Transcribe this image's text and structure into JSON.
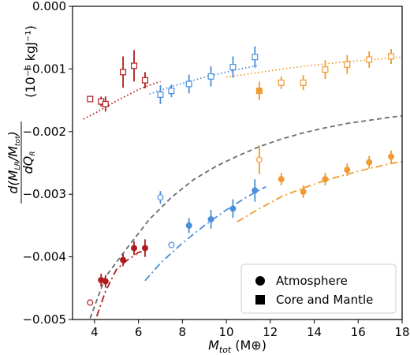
{
  "chart_data": {
    "type": "scatter",
    "title": "",
    "xlabel": {
      "main": "M",
      "sub": "tot",
      "unit": "(M⊕)"
    },
    "ylabel": {
      "num_prefix": "d(M",
      "num_sub1": "LR",
      "num_mid": "/M",
      "num_sub2": "tot",
      "num_suffix": ")",
      "den_prefix": "dQ",
      "den_sub": "R",
      "unit": "(10⁻⁶ kgJ⁻¹)"
    },
    "xlim": [
      3,
      18
    ],
    "ylim": [
      -0.005,
      0.0
    ],
    "xticks": [
      "4",
      "6",
      "8",
      "10",
      "12",
      "14",
      "16",
      "18"
    ],
    "xtick_values": [
      4,
      6,
      8,
      10,
      12,
      14,
      16,
      18
    ],
    "yticks": [
      "0.000",
      "−0.001",
      "−0.002",
      "−0.003",
      "−0.004",
      "−0.005"
    ],
    "ytick_values": [
      0.0,
      -0.001,
      -0.002,
      -0.003,
      -0.004,
      -0.005
    ],
    "grid": false,
    "legend": {
      "placement": "bottom-right",
      "entries": [
        {
          "label": "Atmosphere",
          "marker": "circle"
        },
        {
          "label": "Core and Mantle",
          "marker": "square"
        }
      ]
    },
    "colors": {
      "red": "#b01c1c",
      "blue": "#4a8fd9",
      "orange": "#f09a30",
      "gray": "#666f73"
    },
    "series": [
      {
        "color": "red",
        "marker": "square",
        "points": [
          {
            "x": 3.8,
            "y": -0.00148,
            "err": 4e-05,
            "filled": false
          },
          {
            "x": 4.3,
            "y": -0.00152,
            "err": 8e-05,
            "filled": false
          },
          {
            "x": 4.5,
            "y": -0.00156,
            "err": 0.00012,
            "filled": false
          },
          {
            "x": 5.3,
            "y": -0.00105,
            "err": 0.00025,
            "filled": false
          },
          {
            "x": 5.8,
            "y": -0.00095,
            "err": 0.00025,
            "filled": false
          },
          {
            "x": 6.3,
            "y": -0.00118,
            "err": 0.00013,
            "filled": false
          }
        ]
      },
      {
        "color": "blue",
        "marker": "square",
        "points": [
          {
            "x": 7.0,
            "y": -0.00141,
            "err": 0.00015,
            "filled": false
          },
          {
            "x": 7.5,
            "y": -0.00135,
            "err": 0.0001,
            "filled": false
          },
          {
            "x": 8.3,
            "y": -0.00124,
            "err": 0.00015,
            "filled": false
          },
          {
            "x": 9.3,
            "y": -0.00112,
            "err": 0.00016,
            "filled": false
          },
          {
            "x": 10.3,
            "y": -0.00097,
            "err": 0.00017,
            "filled": false
          },
          {
            "x": 11.3,
            "y": -0.00081,
            "err": 0.00017,
            "filled": false
          }
        ]
      },
      {
        "color": "orange",
        "marker": "square",
        "points": [
          {
            "x": 11.5,
            "y": -0.00135,
            "err": 0.00015,
            "filled": true
          },
          {
            "x": 12.5,
            "y": -0.00122,
            "err": 0.0001,
            "filled": false
          },
          {
            "x": 13.5,
            "y": -0.00122,
            "err": 0.00012,
            "filled": false
          },
          {
            "x": 14.5,
            "y": -0.00101,
            "err": 0.00015,
            "filled": false
          },
          {
            "x": 15.5,
            "y": -0.00093,
            "err": 0.00015,
            "filled": false
          },
          {
            "x": 16.5,
            "y": -0.00085,
            "err": 0.00013,
            "filled": false
          },
          {
            "x": 17.5,
            "y": -0.0008,
            "err": 0.00012,
            "filled": false
          }
        ]
      },
      {
        "color": "red",
        "marker": "circle",
        "points": [
          {
            "x": 3.8,
            "y": -0.00473,
            "err": 4e-05,
            "filled": false
          },
          {
            "x": 4.3,
            "y": -0.00437,
            "err": 0.0001,
            "filled": true
          },
          {
            "x": 4.5,
            "y": -0.00439,
            "err": 0.0001,
            "filled": true
          },
          {
            "x": 5.3,
            "y": -0.00405,
            "err": 0.0001,
            "filled": true
          },
          {
            "x": 5.8,
            "y": -0.00386,
            "err": 0.00011,
            "filled": true
          },
          {
            "x": 6.3,
            "y": -0.00386,
            "err": 0.00014,
            "filled": true
          }
        ]
      },
      {
        "color": "blue",
        "marker": "circle",
        "points": [
          {
            "x": 7.0,
            "y": -0.00305,
            "err": 0.0001,
            "filled": false
          },
          {
            "x": 7.5,
            "y": -0.00381,
            "err": 5e-05,
            "filled": false
          },
          {
            "x": 8.3,
            "y": -0.0035,
            "err": 0.00012,
            "filled": true
          },
          {
            "x": 9.3,
            "y": -0.0034,
            "err": 0.00015,
            "filled": true
          },
          {
            "x": 10.3,
            "y": -0.00323,
            "err": 0.00015,
            "filled": true
          },
          {
            "x": 11.3,
            "y": -0.00294,
            "err": 0.00018,
            "filled": true
          }
        ]
      },
      {
        "color": "orange",
        "marker": "circle",
        "points": [
          {
            "x": 11.5,
            "y": -0.00245,
            "err": 0.00023,
            "filled": false
          },
          {
            "x": 12.5,
            "y": -0.00276,
            "err": 0.0001,
            "filled": true
          },
          {
            "x": 13.5,
            "y": -0.00296,
            "err": 0.0001,
            "filled": true
          },
          {
            "x": 14.5,
            "y": -0.00276,
            "err": 0.0001,
            "filled": true
          },
          {
            "x": 15.5,
            "y": -0.00261,
            "err": 0.0001,
            "filled": true
          },
          {
            "x": 16.5,
            "y": -0.00249,
            "err": 0.0001,
            "filled": true
          },
          {
            "x": 17.5,
            "y": -0.0024,
            "err": 0.0001,
            "filled": true
          }
        ]
      }
    ],
    "curves": [
      {
        "color": "red",
        "style": "dotted",
        "x": [
          3.5,
          4.0,
          4.5,
          5.0,
          5.5,
          6.0,
          6.5,
          7.0
        ],
        "y": [
          -0.0018,
          -0.00171,
          -0.00161,
          -0.00151,
          -0.00142,
          -0.00133,
          -0.00126,
          -0.0012
        ]
      },
      {
        "color": "blue",
        "style": "dotted",
        "x": [
          6.5,
          7.5,
          8.5,
          9.5,
          10.5,
          11.5
        ],
        "y": [
          -0.0014,
          -0.00128,
          -0.00118,
          -0.00109,
          -0.00101,
          -0.00094
        ]
      },
      {
        "color": "orange",
        "style": "dotted",
        "x": [
          10.0,
          11.0,
          12.0,
          13.0,
          14.0,
          15.0,
          16.0,
          17.0,
          18.0
        ],
        "y": [
          -0.00113,
          -0.00108,
          -0.00103,
          -0.00098,
          -0.00094,
          -0.0009,
          -0.00087,
          -0.00084,
          -0.00081
        ]
      },
      {
        "color": "gray",
        "style": "dashed",
        "x": [
          3.8,
          4.5,
          5.5,
          6.5,
          7.5,
          8.5,
          9.5,
          10.5,
          11.5,
          12.5,
          13.5,
          14.5,
          15.5,
          16.5,
          17.5,
          18.0
        ],
        "y": [
          -0.00498,
          -0.00432,
          -0.00385,
          -0.0034,
          -0.00305,
          -0.00277,
          -0.00256,
          -0.00239,
          -0.00224,
          -0.00212,
          -0.00202,
          -0.00194,
          -0.00187,
          -0.00182,
          -0.00177,
          -0.00175
        ]
      },
      {
        "color": "red",
        "style": "dashdot",
        "x": [
          4.1,
          4.5,
          5.0,
          5.5,
          6.0,
          6.3
        ],
        "y": [
          -0.00495,
          -0.00455,
          -0.0042,
          -0.00405,
          -0.00393,
          -0.0039
        ]
      },
      {
        "color": "blue",
        "style": "dashdot",
        "x": [
          6.3,
          7.0,
          8.0,
          9.0,
          10.0,
          11.0,
          11.8
        ],
        "y": [
          -0.00438,
          -0.0041,
          -0.00378,
          -0.0035,
          -0.00325,
          -0.00303,
          -0.00288
        ]
      },
      {
        "color": "orange",
        "style": "dashdot",
        "x": [
          10.5,
          11.5,
          12.5,
          13.5,
          14.5,
          15.5,
          16.5,
          17.5,
          18.0
        ],
        "y": [
          -0.00344,
          -0.00323,
          -0.00304,
          -0.0029,
          -0.00278,
          -0.00268,
          -0.00259,
          -0.00251,
          -0.00248
        ]
      }
    ]
  }
}
